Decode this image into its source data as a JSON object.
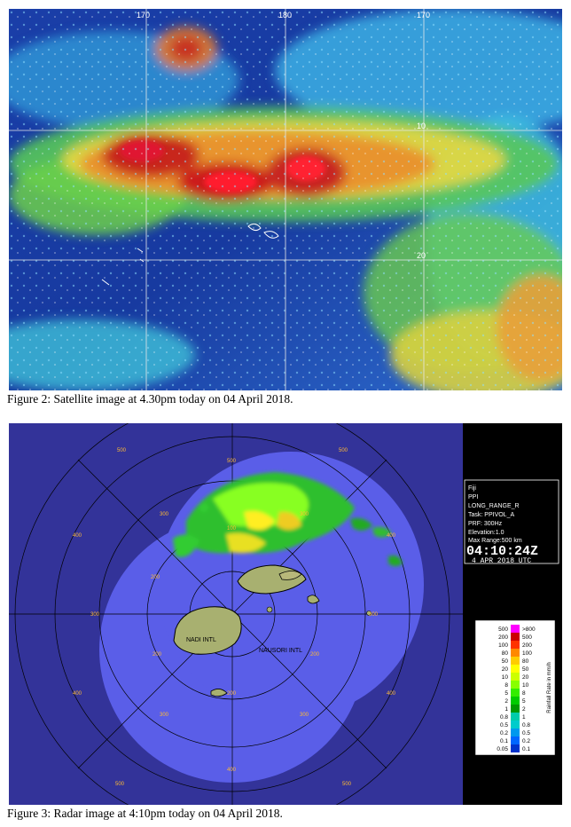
{
  "figures": [
    {
      "caption": "Figure 2: Satellite image at 4.30pm today on 04 April 2018.",
      "grid_labels": {
        "top": [
          "170",
          "180",
          "170"
        ],
        "right": [
          "10",
          "20"
        ]
      }
    },
    {
      "caption": "Figure 3: Radar image at 4:10pm today on 04 April 2018.",
      "info_panel": {
        "lines": [
          "Fiji",
          "PPI",
          "LONG_RANGE_R",
          "Task: PPIVOL_A",
          "PRF: 300Hz",
          "Elevation:1.0",
          "Max Range:500 km"
        ],
        "time": "04:10:24Z",
        "date": "4 APR 2018 UTC"
      },
      "range_labels": {
        "r100": "100",
        "r200": "200",
        "r300": "300",
        "r400": "400",
        "r500": "500"
      },
      "place_labels": {
        "nadi": "NADI INTL",
        "nausori": "NAUSORI INTL"
      },
      "legend": {
        "title": "Rainfall Rate in mm/h",
        "left_values": [
          "500",
          "200",
          "100",
          "80",
          "50",
          "20",
          "10",
          "8",
          "5",
          "2",
          "1",
          "0.8",
          "0.5",
          "0.2",
          "0.1",
          "0.05"
        ],
        "right_values": [
          ">800",
          "500",
          "200",
          "100",
          "80",
          "50",
          "20",
          "10",
          "8",
          "5",
          "2",
          "1",
          "0.8",
          "0.5",
          "0.2",
          "0.1"
        ],
        "colors": [
          "#ff00ff",
          "#cc0000",
          "#ff3300",
          "#ff8800",
          "#ffcc00",
          "#ffff00",
          "#ccff00",
          "#88ff00",
          "#33ee00",
          "#00cc00",
          "#009900",
          "#00ccaa",
          "#00cccc",
          "#0099ee",
          "#0066ff",
          "#0033cc"
        ]
      }
    }
  ]
}
